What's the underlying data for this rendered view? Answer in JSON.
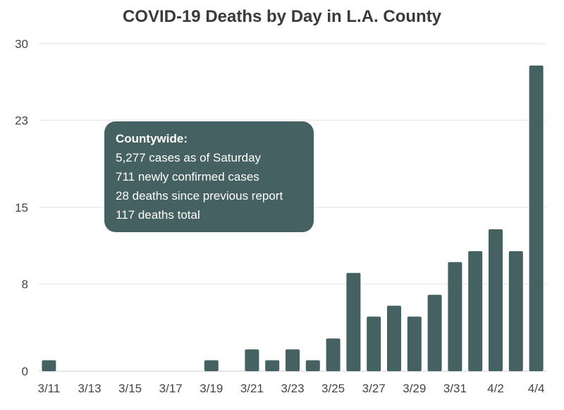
{
  "chart_data": {
    "type": "bar",
    "title": "COVID-19 Deaths by Day in L.A. County",
    "xlabel": "",
    "ylabel": "",
    "ylim": [
      0,
      30
    ],
    "yticks": [
      "0",
      "8",
      "15",
      "23",
      "30"
    ],
    "grid": true,
    "bar_color": "#456161",
    "categories": [
      "3/11",
      "3/12",
      "3/13",
      "3/14",
      "3/15",
      "3/16",
      "3/17",
      "3/18",
      "3/19",
      "3/20",
      "3/21",
      "3/22",
      "3/23",
      "3/24",
      "3/25",
      "3/26",
      "3/27",
      "3/28",
      "3/29",
      "3/30",
      "3/31",
      "4/1",
      "4/2",
      "4/3",
      "4/4"
    ],
    "x_tick_labels": [
      "3/11",
      "3/13",
      "3/15",
      "3/17",
      "3/19",
      "3/21",
      "3/23",
      "3/25",
      "3/27",
      "3/29",
      "3/31",
      "4/2",
      "4/4"
    ],
    "values": [
      1,
      0,
      0,
      0,
      0,
      0,
      0,
      0,
      1,
      0,
      2,
      1,
      2,
      1,
      3,
      9,
      5,
      6,
      5,
      7,
      10,
      11,
      13,
      11,
      28
    ]
  },
  "callout": {
    "heading": "Countywide:",
    "lines": [
      "5,277 cases as of Saturday",
      "711 newly confirmed cases",
      "28 deaths since previous report",
      "117 deaths total"
    ]
  }
}
